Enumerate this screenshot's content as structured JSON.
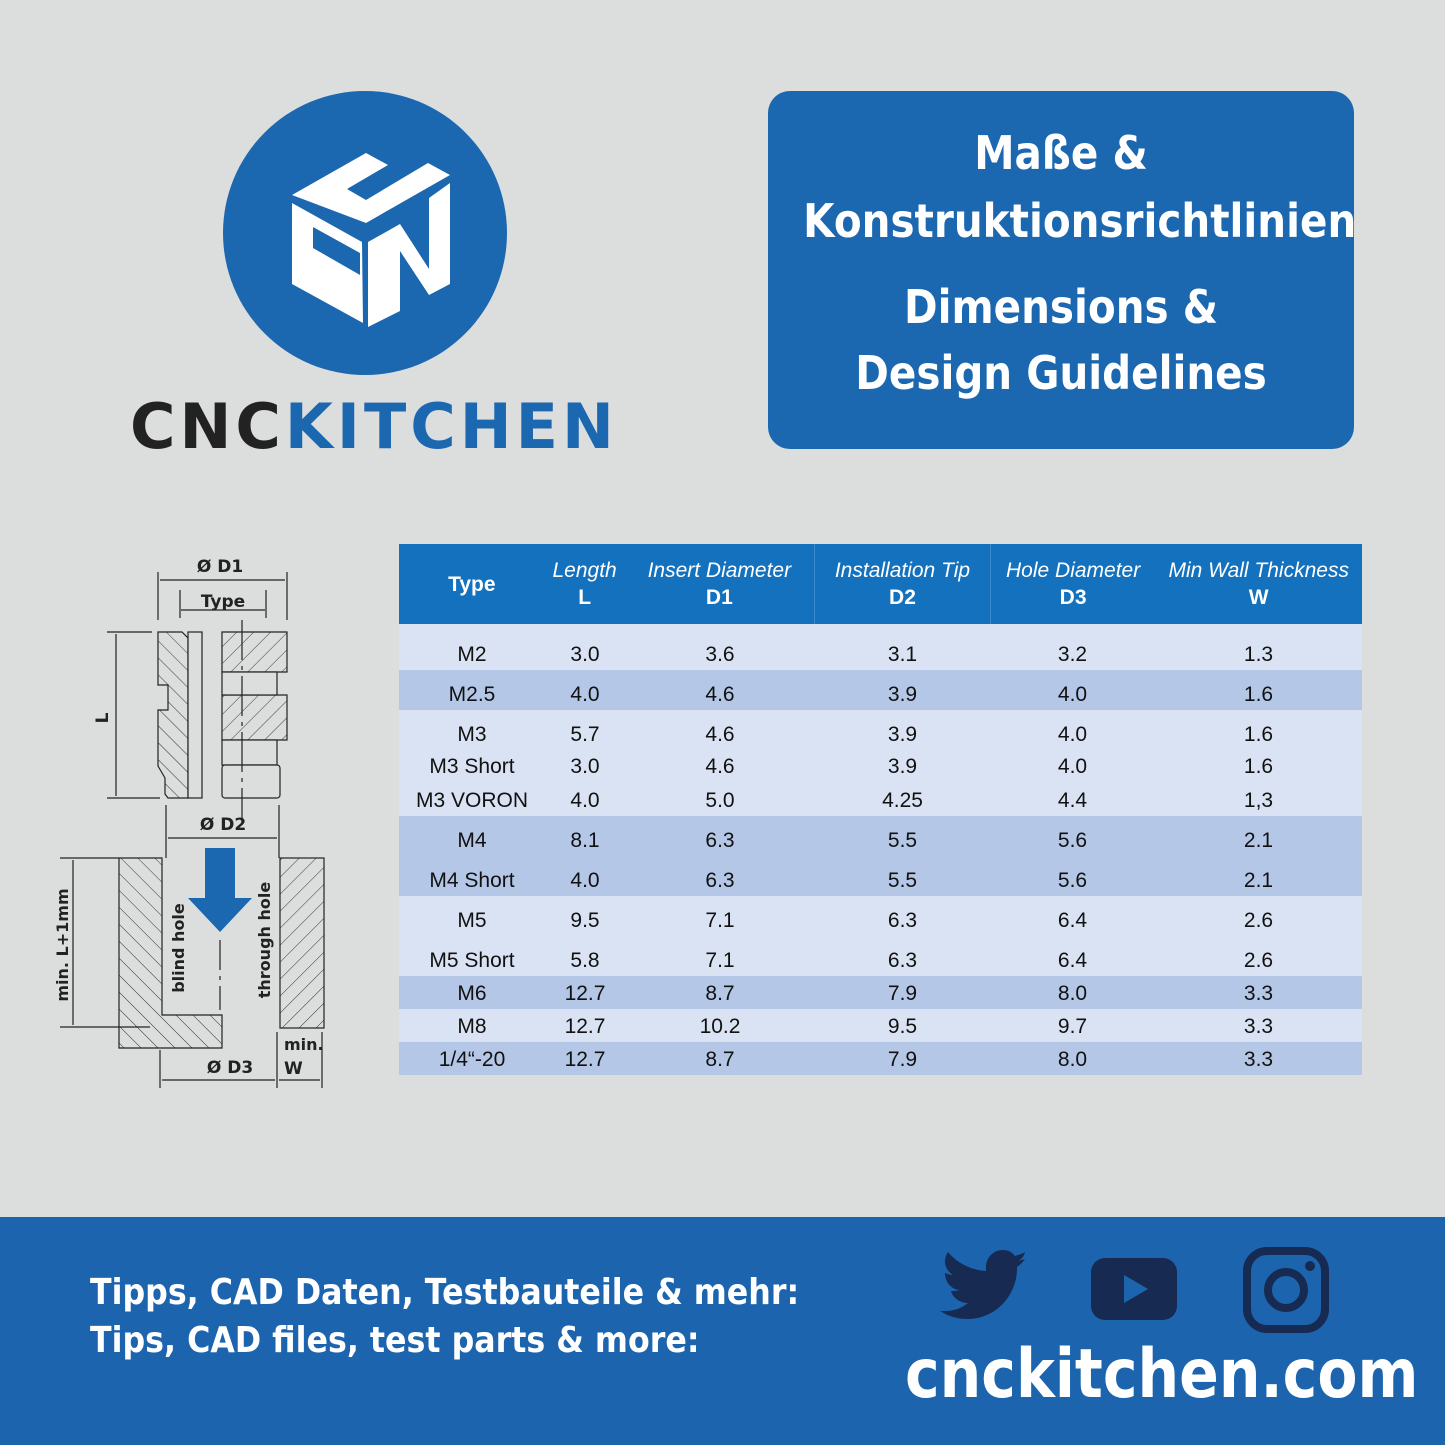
{
  "brand": {
    "logo_text_cnc": "CNC",
    "logo_text_kitchen": "KITCHEN"
  },
  "title": {
    "de_line1": "Maße &",
    "de_line2": "Konstruktionsrichtlinien",
    "en_line1": "Dimensions &",
    "en_line2": "Design Guidelines"
  },
  "diagram": {
    "d1": "Ø D1",
    "type": "Type",
    "l": "L",
    "d2": "Ø D2",
    "min_l": "min. L+1mm",
    "blind_hole": "blind hole",
    "through_hole": "through hole",
    "d3": "Ø D3",
    "min": "min.",
    "w": "W"
  },
  "table": {
    "headers": [
      {
        "name": "Type",
        "sub": ""
      },
      {
        "name": "Length",
        "sub": "L"
      },
      {
        "name": "Insert Diameter",
        "sub": "D1"
      },
      {
        "name": "Installation Tip",
        "sub": "D2"
      },
      {
        "name": "Hole Diameter",
        "sub": "D3"
      },
      {
        "name": "Min Wall Thickness",
        "sub": "W"
      }
    ],
    "rows": [
      [
        "M2",
        "3.0",
        "3.6",
        "3.1",
        "3.2",
        "1.3"
      ],
      [
        "M2.5",
        "4.0",
        "4.6",
        "3.9",
        "4.0",
        "1.6"
      ],
      [
        "M3",
        "5.7",
        "4.6",
        "3.9",
        "4.0",
        "1.6"
      ],
      [
        "M3 Short",
        "3.0",
        "4.6",
        "3.9",
        "4.0",
        "1.6"
      ],
      [
        "M3 VORON",
        "4.0",
        "5.0",
        "4.25",
        "4.4",
        "1,3"
      ],
      [
        "M4",
        "8.1",
        "6.3",
        "5.5",
        "5.6",
        "2.1"
      ],
      [
        "M4 Short",
        "4.0",
        "6.3",
        "5.5",
        "5.6",
        "2.1"
      ],
      [
        "M5",
        "9.5",
        "7.1",
        "6.3",
        "6.4",
        "2.6"
      ],
      [
        "M5 Short",
        "5.8",
        "7.1",
        "6.3",
        "6.4",
        "2.6"
      ],
      [
        "M6",
        "12.7",
        "8.7",
        "7.9",
        "8.0",
        "3.3"
      ],
      [
        "M8",
        "12.7",
        "10.2",
        "9.5",
        "9.7",
        "3.3"
      ],
      [
        "1/4“-20",
        "12.7",
        "8.7",
        "7.9",
        "8.0",
        "3.3"
      ]
    ]
  },
  "footer": {
    "line_de": "Tipps, CAD Daten, Testbauteile & mehr:",
    "line_en": "Tips, CAD files, test parts & more:",
    "website": "cnckitchen.com",
    "icons": [
      "twitter-icon",
      "youtube-icon",
      "instagram-icon"
    ]
  },
  "colors": {
    "brand_blue": "#1b67b0",
    "header_blue": "#1471bd",
    "row_light": "#dae3f3",
    "row_dark": "#b4c7e7",
    "icon_navy": "#172a52"
  }
}
